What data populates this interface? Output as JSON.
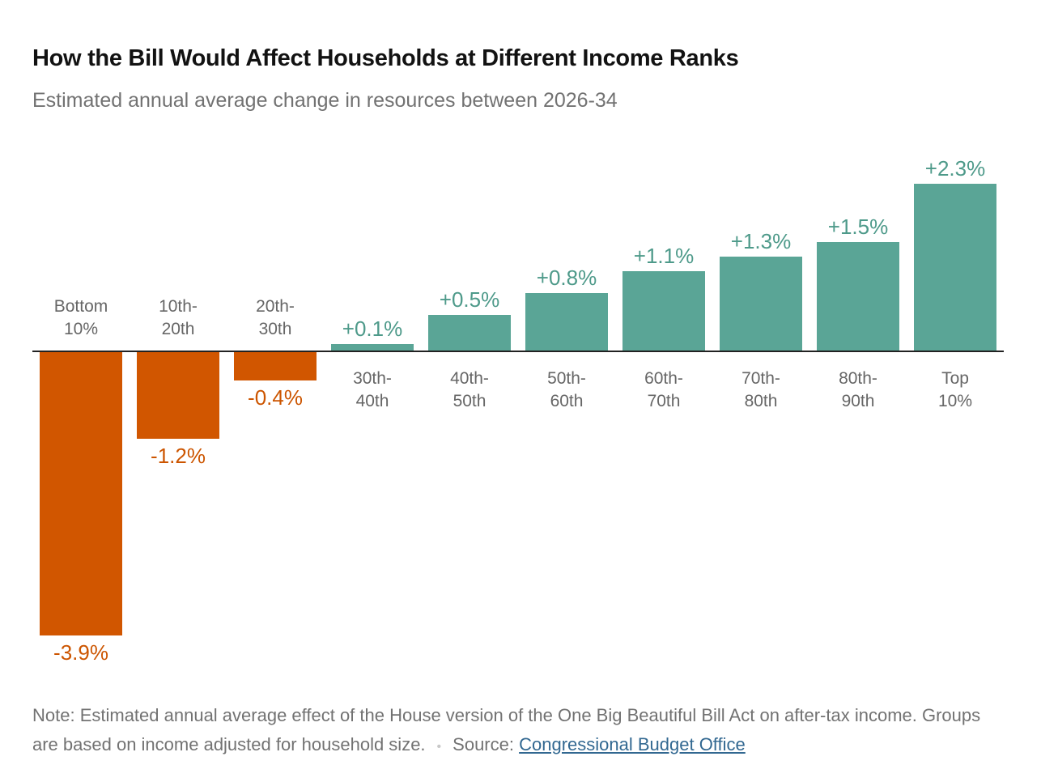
{
  "header": {
    "title": "How the Bill Would Affect Households at Different Income Ranks",
    "subtitle": "Estimated annual average change in resources between 2026-34"
  },
  "chart_data": {
    "type": "bar",
    "categories": [
      [
        "Bottom",
        "10%"
      ],
      [
        "10th-",
        "20th"
      ],
      [
        "20th-",
        "30th"
      ],
      [
        "30th-",
        "40th"
      ],
      [
        "40th-",
        "50th"
      ],
      [
        "50th-",
        "60th"
      ],
      [
        "60th-",
        "70th"
      ],
      [
        "70th-",
        "80th"
      ],
      [
        "80th-",
        "90th"
      ],
      [
        "Top",
        "10%"
      ]
    ],
    "values": [
      -3.9,
      -1.2,
      -0.4,
      0.1,
      0.5,
      0.8,
      1.1,
      1.3,
      1.5,
      2.3
    ],
    "value_labels": [
      "-3.9%",
      "-1.2%",
      "-0.4%",
      "+0.1%",
      "+0.5%",
      "+0.8%",
      "+1.1%",
      "+1.3%",
      "+1.5%",
      "+2.3%"
    ],
    "ylim": [
      -3.9,
      2.3
    ],
    "grid": false,
    "colors": {
      "negative": "#d15600",
      "positive": "#5aa596",
      "negative_label": "#cc5500",
      "positive_label": "#4e9a8a"
    }
  },
  "footer": {
    "note": "Note: Estimated annual average effect of the House version of the One Big Beautiful Bill Act on after-tax income. Groups are based on income adjusted for household size.",
    "separator": "•",
    "source_label": "Source:",
    "source_link": "Congressional Budget Office"
  }
}
